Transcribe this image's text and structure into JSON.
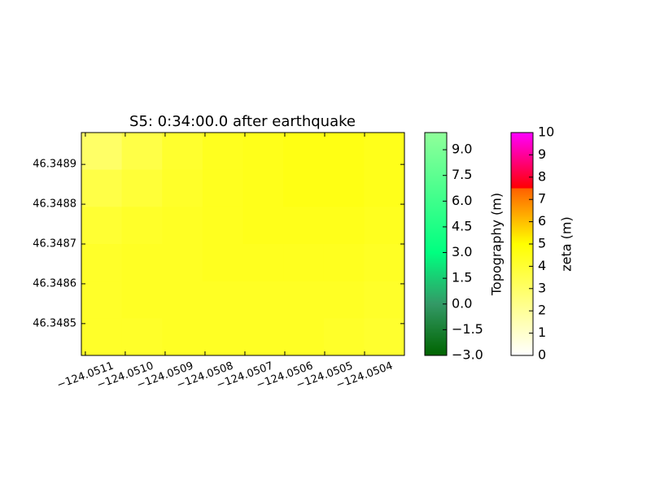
{
  "chart_data": {
    "type": "heatmap",
    "title": "S5: 0:34:00.0 after earthquake",
    "xlim": [
      -124.05111,
      -124.0503
    ],
    "xticks": [
      {
        "value": -124.0511,
        "label": "−124.0511"
      },
      {
        "value": -124.051,
        "label": "−124.0510"
      },
      {
        "value": -124.0509,
        "label": "−124.0509"
      },
      {
        "value": -124.0508,
        "label": "−124.0508"
      },
      {
        "value": -124.0507,
        "label": "−124.0507"
      },
      {
        "value": -124.0506,
        "label": "−124.0506"
      },
      {
        "value": -124.0505,
        "label": "−124.0505"
      },
      {
        "value": -124.0504,
        "label": "−124.0504"
      }
    ],
    "ylim": [
      46.34842,
      46.34898
    ],
    "yticks": [
      46.3485,
      46.3486,
      46.3487,
      46.3488,
      46.3489
    ],
    "z": [
      [
        3.0,
        3.6,
        4.1,
        4.4,
        4.5,
        4.6,
        4.6,
        4.5
      ],
      [
        3.6,
        3.9,
        4.2,
        4.4,
        4.5,
        4.6,
        4.6,
        4.5
      ],
      [
        4.0,
        4.2,
        4.3,
        4.4,
        4.5,
        4.5,
        4.5,
        4.4
      ],
      [
        4.2,
        4.3,
        4.3,
        4.4,
        4.4,
        4.4,
        4.4,
        4.3
      ],
      [
        4.2,
        4.3,
        4.3,
        4.3,
        4.3,
        4.3,
        4.3,
        4.2
      ],
      [
        4.2,
        4.2,
        4.3,
        4.3,
        4.3,
        4.3,
        4.2,
        4.1
      ]
    ],
    "colorbars": [
      {
        "label": "Topography (m)",
        "lim": [
          -3,
          10
        ],
        "ticks": [
          {
            "value": -3,
            "label": "−3.0"
          },
          {
            "value": -1.5,
            "label": "−1.5"
          },
          {
            "value": 0,
            "label": "0.0"
          },
          {
            "value": 1.5,
            "label": "1.5"
          },
          {
            "value": 3,
            "label": "3.0"
          },
          {
            "value": 4.5,
            "label": "4.5"
          },
          {
            "value": 6,
            "label": "6.0"
          },
          {
            "value": 7.5,
            "label": "7.5"
          },
          {
            "value": 9,
            "label": "9.0"
          }
        ],
        "stops": [
          [
            -3,
            "#006400"
          ],
          [
            0,
            "#339966"
          ],
          [
            3,
            "#00ff80"
          ],
          [
            10,
            "#90ff9a"
          ]
        ]
      },
      {
        "label": "zeta (m)",
        "lim": [
          0,
          10
        ],
        "ticks": [
          0,
          1,
          2,
          3,
          4,
          5,
          6,
          7,
          8,
          9,
          10
        ],
        "stops": [
          [
            0,
            "#ffffff"
          ],
          [
            5,
            "#ffff00"
          ],
          [
            7.5,
            "#ff6000"
          ],
          [
            7.5,
            "#ff0000"
          ],
          [
            10,
            "#ff00ff"
          ]
        ]
      }
    ]
  }
}
